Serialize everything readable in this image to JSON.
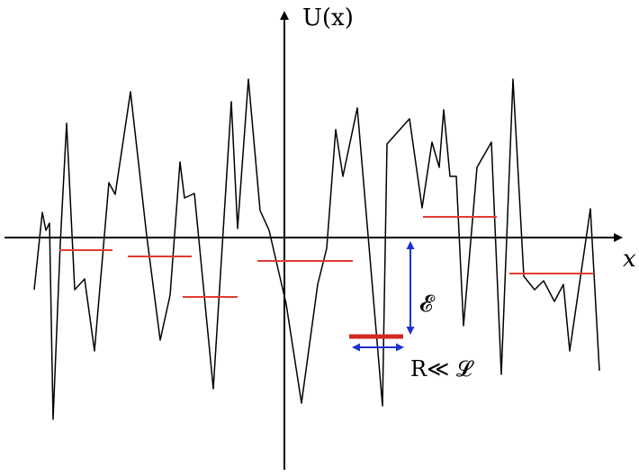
{
  "labels": {
    "y_axis": "U(x)",
    "x_axis": "x",
    "energy_symbol": "𝓔",
    "size_relation": "R≪ 𝓛"
  },
  "colors": {
    "curve": "#000000",
    "axes": "#000000",
    "levels": "#e03c31",
    "deep_level": "#d12a20",
    "arrows": "#1f2fd6"
  }
}
